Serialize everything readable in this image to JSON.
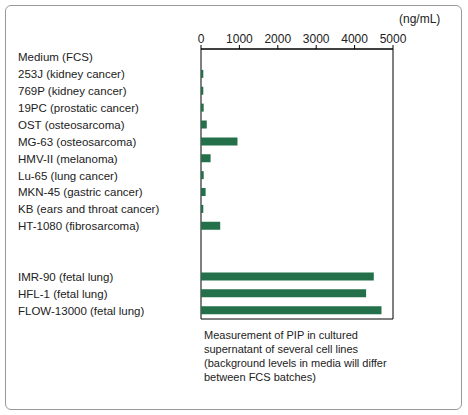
{
  "chart_data": {
    "type": "bar",
    "orientation": "horizontal",
    "categories": [
      "Medium (FCS)",
      "253J (kidney cancer)",
      "769P (kidney cancer)",
      "19PC (prostatic cancer)",
      "OST (osteosarcoma)",
      "MG-63 (osteosarcoma)",
      "HMV-II (melanoma)",
      "Lu-65 (lung cancer)",
      "MKN-45 (gastric cancer)",
      "KB (ears and throat cancer)",
      "HT-1080 (fibrosarcoma)",
      null,
      null,
      "IMR-90 (fetal lung)",
      "HFL-1 (fetal lung)",
      "FLOW-13000 (fetal lung)"
    ],
    "values": [
      null,
      60,
      60,
      70,
      150,
      950,
      250,
      70,
      120,
      60,
      500,
      null,
      null,
      4500,
      4300,
      4700
    ],
    "color": "#23704a",
    "xlabel": "(ng/mL)",
    "xlim": [
      0,
      5000
    ],
    "xticks": [
      0,
      1000,
      2000,
      3000,
      4000,
      5000
    ],
    "annotation": "Measurement of PIP in cultured supernatant of several cell lines (background levels in media will differ between FCS batches)",
    "grid": false
  }
}
